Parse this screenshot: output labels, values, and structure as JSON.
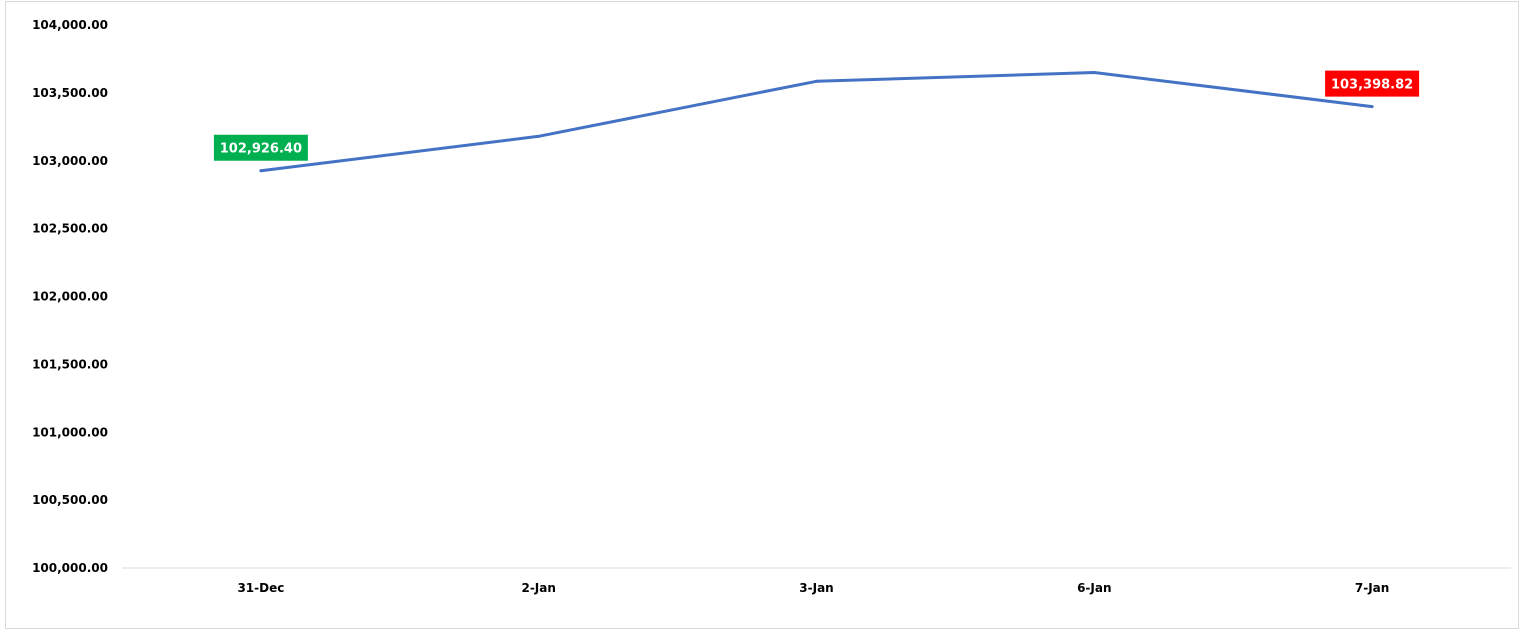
{
  "chart_data": {
    "type": "line",
    "title": "",
    "xlabel": "",
    "ylabel": "",
    "categories": [
      "31-Dec",
      "2-Jan",
      "3-Jan",
      "6-Jan",
      "7-Jan"
    ],
    "series": [
      {
        "values": [
          102926.4,
          103180.0,
          103585.0,
          103650.0,
          103398.82
        ],
        "color": "#4472c4"
      }
    ],
    "ylim": [
      100000,
      104000
    ],
    "yticks": [
      100000,
      100500,
      101000,
      101500,
      102000,
      102500,
      103000,
      103500,
      104000
    ],
    "ytick_labels": [
      "100,000.00",
      "100,500.00",
      "101,000.00",
      "101,500.00",
      "102,000.00",
      "102,500.00",
      "103,000.00",
      "103,500.00",
      "104,000.00"
    ],
    "gridlines": false,
    "legend": "none",
    "data_labels": [
      {
        "index": 0,
        "text": "102,926.40",
        "background": "#00b050",
        "placement": "above"
      },
      {
        "index": 4,
        "text": "103,398.82",
        "background": "#ff0000",
        "placement": "above"
      }
    ]
  }
}
